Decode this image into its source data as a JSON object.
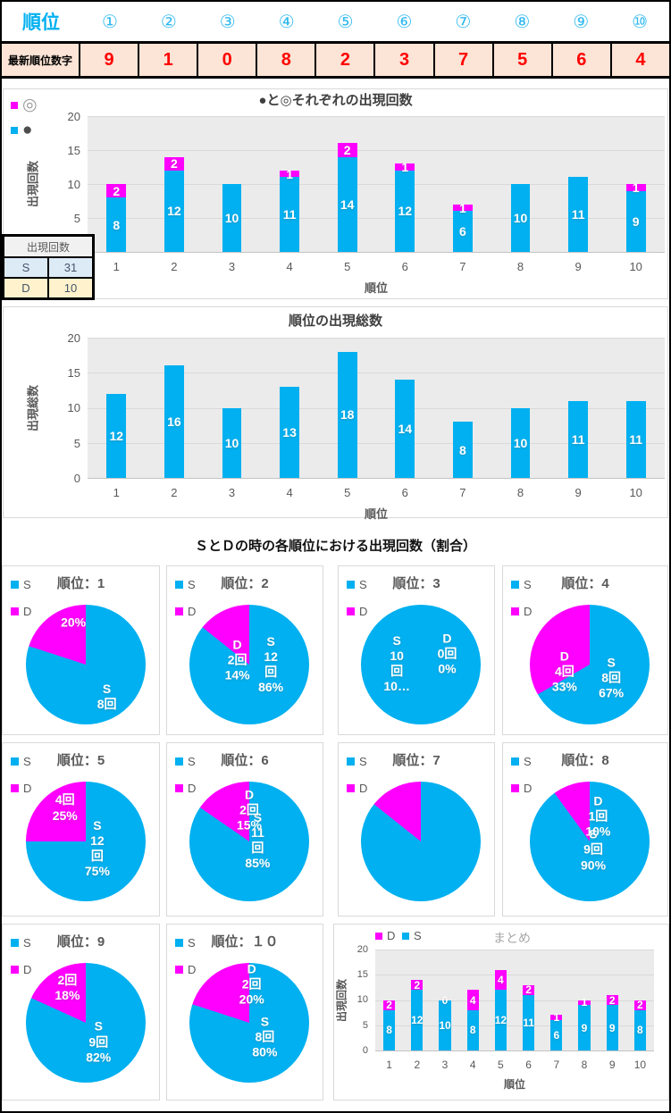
{
  "colors": {
    "cyan": "#00B0F0",
    "magenta": "#FF00FF",
    "red": "#FF0000",
    "peach": "#FCE4D6",
    "axis_text": "#595959",
    "chart_title": "#3F3F3F",
    "summary_title": "#A6A6A6",
    "plot_bg": "#EBEBEB",
    "grid": "#D9D9D9"
  },
  "top_table": {
    "title": "順位",
    "columns": [
      "①",
      "②",
      "③",
      "④",
      "⑤",
      "⑥",
      "⑦",
      "⑧",
      "⑨",
      "⑩"
    ],
    "row_label": "最新順位数字",
    "values": [
      "9",
      "1",
      "0",
      "8",
      "2",
      "3",
      "7",
      "5",
      "6",
      "4"
    ]
  },
  "counts_table": {
    "header": "出現回数",
    "rows": [
      {
        "label": "S",
        "value": "31",
        "bg": "#DDEBF7"
      },
      {
        "label": "D",
        "value": "10",
        "bg": "#FFF2CC"
      }
    ]
  },
  "section_title": "ＳとＤの時の各順位における出現回数（割合）",
  "chart_data": [
    {
      "id": "chart1",
      "type": "stacked-bar",
      "title": "●と◎それぞれの出現回数",
      "legend": [
        {
          "label": "◎",
          "swatch": "#FF00FF",
          "glyph_color": "#9B9B9B"
        },
        {
          "label": "●",
          "swatch": "#00B0F0",
          "glyph_color": "#4D4D4D"
        }
      ],
      "legend_position": "vertical-left",
      "xlabel": "順位",
      "ylabel": "出現回数",
      "ylim": [
        0,
        20
      ],
      "yticks": [
        0,
        5,
        10,
        15,
        20
      ],
      "grid": true,
      "categories": [
        "1",
        "2",
        "3",
        "4",
        "5",
        "6",
        "7",
        "8",
        "9",
        "10"
      ],
      "series": [
        {
          "name": "●",
          "color": "#00B0F0",
          "values": [
            8,
            12,
            10,
            11,
            14,
            12,
            6,
            10,
            11,
            9
          ],
          "labels": [
            "8",
            "12",
            "10",
            "11",
            "14",
            "12",
            "6",
            "10",
            "11",
            "9"
          ]
        },
        {
          "name": "◎",
          "color": "#FF00FF",
          "values": [
            2,
            2,
            0,
            1,
            2,
            1,
            1,
            0,
            0,
            1
          ],
          "labels": [
            "2",
            "2",
            "",
            "1",
            "2",
            "1",
            "1",
            "",
            "",
            "1"
          ]
        }
      ]
    },
    {
      "id": "chart2",
      "type": "bar",
      "title": "順位の出現総数",
      "legend": [],
      "xlabel": "順位",
      "ylabel": "出現総数",
      "ylim": [
        0,
        20
      ],
      "yticks": [
        0,
        5,
        10,
        15,
        20
      ],
      "grid": true,
      "categories": [
        "1",
        "2",
        "3",
        "4",
        "5",
        "6",
        "7",
        "8",
        "9",
        "10"
      ],
      "series": [
        {
          "name": "総数",
          "color": "#00B0F0",
          "values": [
            12,
            16,
            10,
            13,
            18,
            14,
            8,
            10,
            11,
            11
          ],
          "labels": [
            "12",
            "16",
            "10",
            "13",
            "18",
            "14",
            "8",
            "10",
            "11",
            "11"
          ]
        }
      ]
    },
    {
      "id": "pie1",
      "type": "pie",
      "title": "順位：1",
      "legend": [
        {
          "label": "S",
          "swatch": "#00B0F0"
        },
        {
          "label": "D",
          "swatch": "#FF00FF"
        }
      ],
      "values": {
        "S": 8,
        "D": 2
      },
      "s_pct": 80,
      "labels": [
        {
          "series": "S",
          "text": "S\n8回",
          "x": 68,
          "y": 77
        },
        {
          "series": "D",
          "text": "20%",
          "x": 40,
          "y": 15
        }
      ]
    },
    {
      "id": "pie2",
      "type": "pie",
      "title": "順位：2",
      "legend": [
        {
          "label": "S",
          "swatch": "#00B0F0"
        },
        {
          "label": "D",
          "swatch": "#FF00FF"
        }
      ],
      "values": {
        "S": 12,
        "D": 2
      },
      "s_pct": 85.7,
      "labels": [
        {
          "series": "S",
          "text": "S\n12\n回\n86%",
          "x": 68,
          "y": 50
        },
        {
          "series": "D",
          "text": "D\n2回\n14%",
          "x": 40,
          "y": 46
        }
      ]
    },
    {
      "id": "pie3",
      "type": "pie",
      "title": "順位：3",
      "legend": [
        {
          "label": "S",
          "swatch": "#00B0F0"
        },
        {
          "label": "D",
          "swatch": "#FF00FF"
        }
      ],
      "values": {
        "S": 10,
        "D": 0
      },
      "s_pct": 100,
      "labels": [
        {
          "series": "S",
          "text": "S\n10\n回\n10…",
          "x": 30,
          "y": 49
        },
        {
          "series": "D",
          "text": "D\n0回\n0%",
          "x": 72,
          "y": 41
        }
      ]
    },
    {
      "id": "pie4",
      "type": "pie",
      "title": "順位：4",
      "legend": [
        {
          "label": "S",
          "swatch": "#00B0F0"
        },
        {
          "label": "D",
          "swatch": "#FF00FF"
        }
      ],
      "values": {
        "S": 8,
        "D": 4
      },
      "s_pct": 66.7,
      "labels": [
        {
          "series": "S",
          "text": "S\n8回\n67%",
          "x": 68,
          "y": 61
        },
        {
          "series": "D",
          "text": "D\n4回\n33%",
          "x": 29,
          "y": 56
        }
      ]
    },
    {
      "id": "pie5",
      "type": "pie",
      "title": "順位：5",
      "legend": [
        {
          "label": "S",
          "swatch": "#00B0F0"
        },
        {
          "label": "D",
          "swatch": "#FF00FF"
        }
      ],
      "values": {
        "S": 12,
        "D": 4
      },
      "s_pct": 75,
      "labels": [
        {
          "series": "S",
          "text": "S\n12\n回\n75%",
          "x": 60,
          "y": 56
        },
        {
          "series": "D",
          "text": "4回\n25%",
          "x": 33,
          "y": 22
        }
      ]
    },
    {
      "id": "pie6",
      "type": "pie",
      "title": "順位：6",
      "legend": [
        {
          "label": "S",
          "swatch": "#00B0F0"
        },
        {
          "label": "D",
          "swatch": "#FF00FF"
        }
      ],
      "values": {
        "S": 11,
        "D": 2
      },
      "s_pct": 84.6,
      "labels": [
        {
          "series": "S",
          "text": "S\n11\n回\n85%",
          "x": 57,
          "y": 49
        },
        {
          "series": "D",
          "text": "D\n2回\n15%",
          "x": 50,
          "y": 24
        }
      ]
    },
    {
      "id": "pie7",
      "type": "pie",
      "title": "順位：7",
      "legend": [
        {
          "label": "S",
          "swatch": "#00B0F0"
        },
        {
          "label": "D",
          "swatch": "#FF00FF"
        }
      ],
      "values": {
        "S": 6,
        "D": 1
      },
      "s_pct": 85.7,
      "labels": []
    },
    {
      "id": "pie8",
      "type": "pie",
      "title": "順位：8",
      "legend": [
        {
          "label": "S",
          "swatch": "#00B0F0"
        },
        {
          "label": "D",
          "swatch": "#FF00FF"
        }
      ],
      "values": {
        "S": 9,
        "D": 1
      },
      "s_pct": 90,
      "labels": [
        {
          "series": "S",
          "text": "S\n9回\n90%",
          "x": 53,
          "y": 57
        },
        {
          "series": "D",
          "text": "D\n1回\n10%",
          "x": 57,
          "y": 29
        }
      ]
    },
    {
      "id": "pie9",
      "type": "pie",
      "title": "順位：9",
      "legend": [
        {
          "label": "S",
          "swatch": "#00B0F0"
        },
        {
          "label": "D",
          "swatch": "#FF00FF"
        }
      ],
      "values": {
        "S": 9,
        "D": 2
      },
      "s_pct": 81.8,
      "labels": [
        {
          "series": "S",
          "text": "S\n9回\n82%",
          "x": 61,
          "y": 66
        },
        {
          "series": "D",
          "text": "2回\n18%",
          "x": 35,
          "y": 21
        }
      ]
    },
    {
      "id": "pie10",
      "type": "pie",
      "title": "順位：１０",
      "legend": [
        {
          "label": "S",
          "swatch": "#00B0F0"
        },
        {
          "label": "D",
          "swatch": "#FF00FF"
        }
      ],
      "values": {
        "S": 8,
        "D": 2
      },
      "s_pct": 80,
      "labels": [
        {
          "series": "S",
          "text": "S\n8回\n80%",
          "x": 63,
          "y": 62
        },
        {
          "series": "D",
          "text": "D\n2回\n20%",
          "x": 52,
          "y": 18
        }
      ]
    },
    {
      "id": "summary",
      "type": "stacked-bar",
      "title": "まとめ",
      "legend": [
        {
          "label": "D",
          "swatch": "#FF00FF",
          "glyph_color": "#595959"
        },
        {
          "label": "S",
          "swatch": "#00B0F0",
          "glyph_color": "#595959"
        }
      ],
      "legend_position": "horizontal-top",
      "xlabel": "順位",
      "ylabel": "出現回数",
      "ylim": [
        0,
        20
      ],
      "yticks": [
        0,
        5,
        10,
        15,
        20
      ],
      "grid": true,
      "categories": [
        "1",
        "2",
        "3",
        "4",
        "5",
        "6",
        "7",
        "8",
        "9",
        "10"
      ],
      "series": [
        {
          "name": "S",
          "color": "#00B0F0",
          "values": [
            8,
            12,
            10,
            8,
            12,
            11,
            6,
            9,
            9,
            8
          ],
          "labels": [
            "8",
            "12",
            "10",
            "8",
            "12",
            "11",
            "6",
            "9",
            "9",
            "8"
          ]
        },
        {
          "name": "D",
          "color": "#FF00FF",
          "values": [
            2,
            2,
            0,
            4,
            4,
            2,
            1,
            1,
            2,
            2
          ],
          "labels": [
            "2",
            "2",
            "0",
            "4",
            "4",
            "2",
            "1",
            "1",
            "2",
            "2"
          ]
        }
      ]
    }
  ]
}
